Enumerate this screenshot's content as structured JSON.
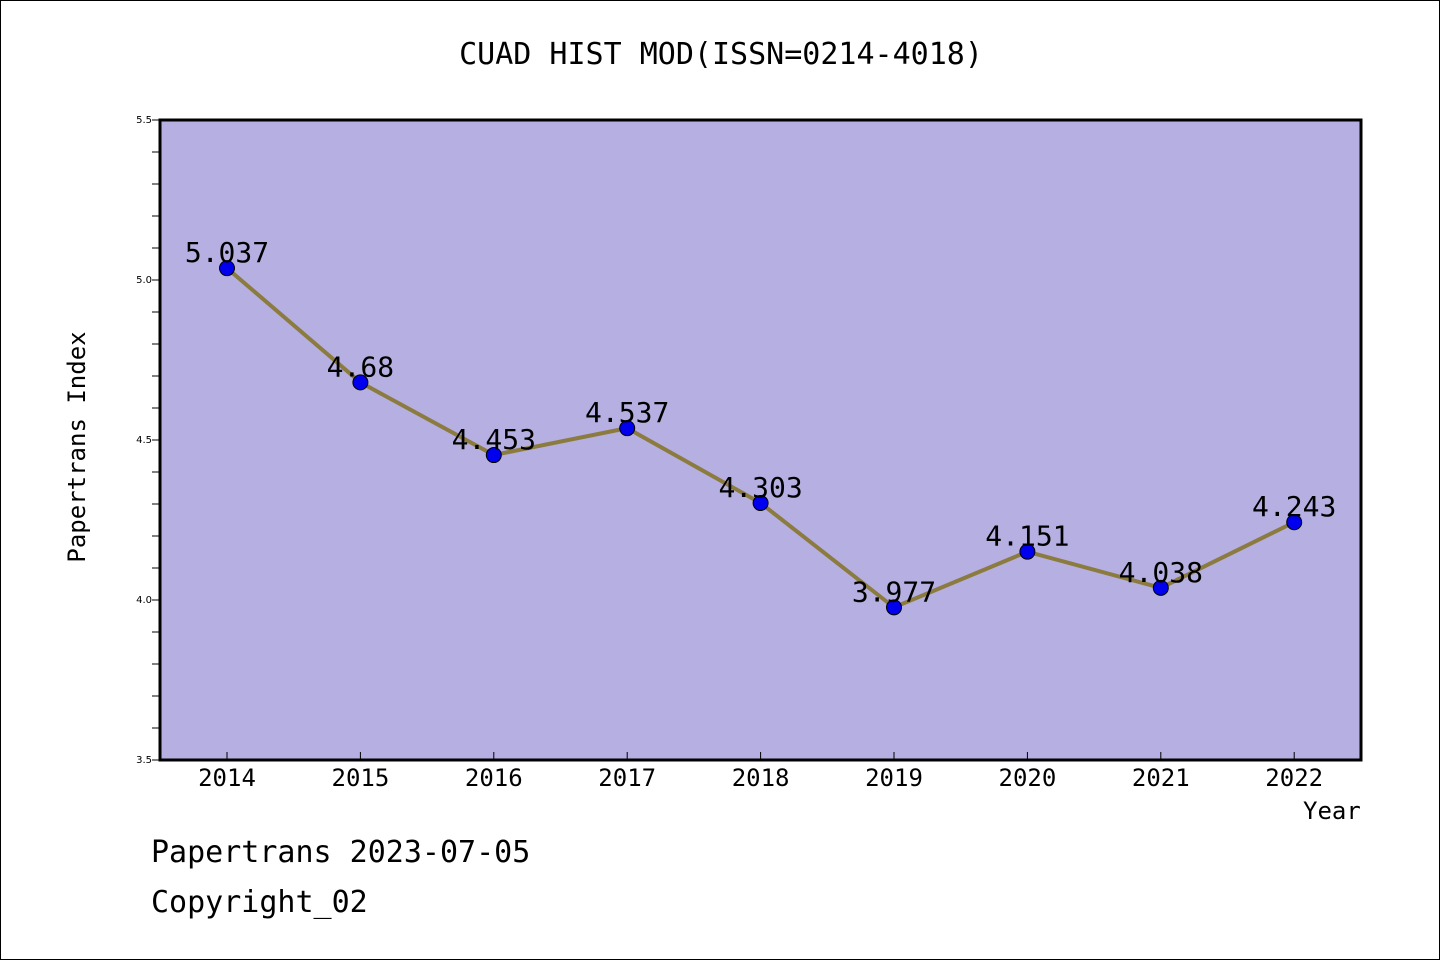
{
  "chart_data": {
    "type": "line",
    "title": "CUAD HIST MOD(ISSN=0214-4018)",
    "xlabel": "Year",
    "ylabel": "Papertrans Index",
    "categories": [
      "2014",
      "2015",
      "2016",
      "2017",
      "2018",
      "2019",
      "2020",
      "2021",
      "2022"
    ],
    "series": [
      {
        "values": [
          5.037,
          4.68,
          4.453,
          4.537,
          4.303,
          3.977,
          4.151,
          4.038,
          4.243
        ],
        "data_labels": [
          "5.037",
          "4.68",
          "4.453",
          "4.537",
          "4.303",
          "3.977",
          "4.151",
          "4.038",
          "4.243"
        ]
      }
    ],
    "ylim": [
      3.5,
      5.5
    ],
    "yticks": [
      "3.5",
      "4.0",
      "4.5",
      "5.0",
      "5.5"
    ],
    "grid": false,
    "colors": {
      "plot_background": "#b5afe2",
      "line": "#8c7b3e",
      "marker": "#0000ee"
    }
  },
  "footer": {
    "line1": "Papertrans 2023-07-05",
    "line2": "Copyright_02"
  }
}
